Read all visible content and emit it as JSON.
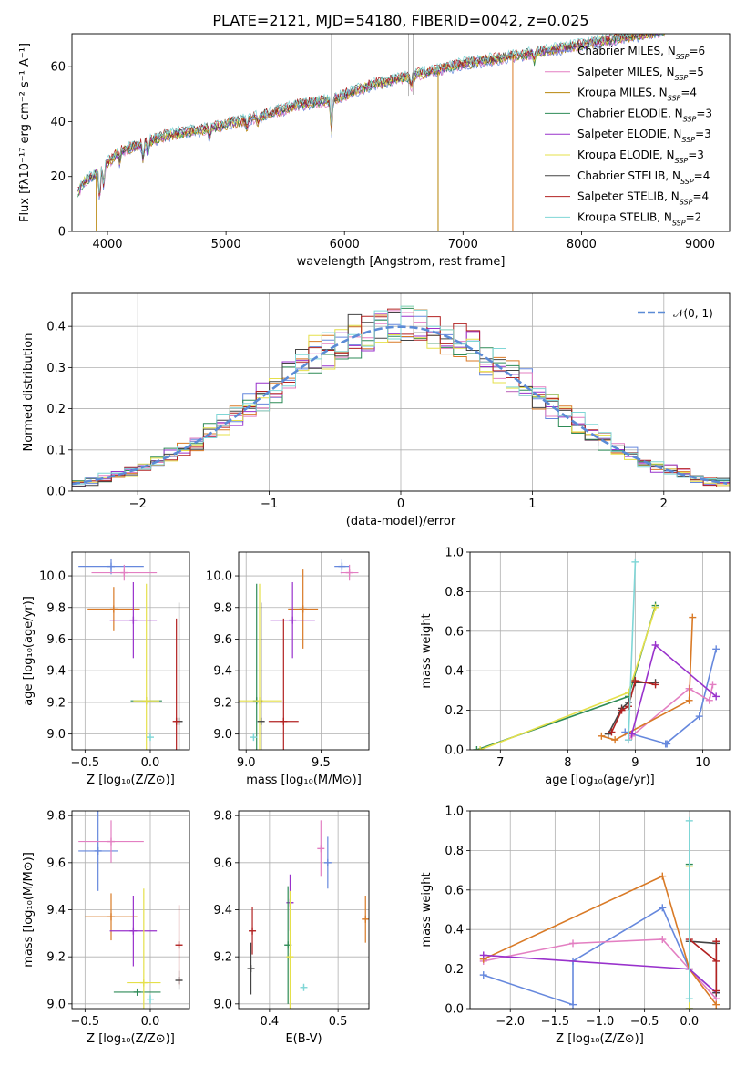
{
  "figure": {
    "title": "PLATE=2121, MJD=54180, FIBERID=0042, z=0.025"
  },
  "chart_data": [
    {
      "id": "spectrum",
      "type": "line",
      "title": "PLATE=2121, MJD=54180, FIBERID=0042, z=0.025",
      "xlabel": "wavelength [Angstrom, rest frame]",
      "ylabel": "Flux [fλ10⁻¹⁷ erg cm⁻² s⁻¹ A⁻¹]",
      "xlim": [
        3700,
        9250
      ],
      "ylim": [
        0,
        72
      ],
      "xticks": [
        4000,
        5000,
        6000,
        7000,
        8000,
        9000
      ],
      "yticks": [
        0,
        20,
        40,
        60
      ],
      "grid": false,
      "legend_position": "top-right",
      "series": [
        {
          "name": "Chabrier MILES, N_SSP=6",
          "color": "#6688dd"
        },
        {
          "name": "Salpeter MILES, N_SSP=5",
          "color": "#e37fc2"
        },
        {
          "name": "Kroupa MILES, N_SSP=4",
          "color": "#b8860b"
        },
        {
          "name": "Chabrier ELODIE, N_SSP=3",
          "color": "#2e8b57"
        },
        {
          "name": "Salpeter ELODIE, N_SSP=3",
          "color": "#9932cc"
        },
        {
          "name": "Kroupa ELODIE, N_SSP=3",
          "color": "#e5e04a"
        },
        {
          "name": "Chabrier STELIB, N_SSP=4",
          "color": "#444444"
        },
        {
          "name": "Salpeter STELIB, N_SSP=4",
          "color": "#b22222"
        },
        {
          "name": "Kroupa STELIB, N_SSP=2",
          "color": "#7fd6d6"
        }
      ],
      "continuum": {
        "x": [
          3750,
          3800,
          3900,
          4000,
          4100,
          4300,
          4500,
          4800,
          5000,
          5300,
          5600,
          5900,
          6200,
          6500,
          6800,
          7000,
          7300,
          7600,
          8000,
          8400,
          8700
        ],
        "y": [
          13,
          17,
          20,
          24,
          28,
          31,
          34,
          36,
          38,
          41,
          45,
          47,
          52,
          55,
          58,
          60,
          62,
          64,
          67,
          70,
          72
        ]
      }
    },
    {
      "id": "residuals",
      "type": "line",
      "xlabel": "(data-model)/error",
      "ylabel": "Normed distribution",
      "xlim": [
        -2.5,
        2.5
      ],
      "ylim": [
        0,
        0.48
      ],
      "xticks": [
        -2,
        -1,
        0,
        1,
        2
      ],
      "yticks": [
        0.0,
        0.1,
        0.2,
        0.3,
        0.4
      ],
      "grid": true,
      "legend_position": "top-right",
      "legend": "𝒩(0, 1)",
      "reference_curve": {
        "type": "gaussian",
        "mean": 0,
        "sigma": 1,
        "color": "#5b8bd6",
        "dashed": true
      },
      "histogram_colors": [
        "#6688dd",
        "#e37fc2",
        "#d97a26",
        "#2e8b57",
        "#9932cc",
        "#e5e04a",
        "#444444",
        "#b22222",
        "#7fd6d6"
      ]
    },
    {
      "id": "age-vs-Z",
      "type": "scatter",
      "xlabel": "Z [log₁₀(Z/Z⊙)]",
      "ylabel": "age  [log₁₀(age/yr)]",
      "xlim": [
        -0.6,
        0.3
      ],
      "ylim": [
        8.9,
        10.15
      ],
      "xticks": [
        -0.5,
        0.0
      ],
      "yticks": [
        9.0,
        9.2,
        9.4,
        9.6,
        9.8,
        10.0
      ],
      "grid": true,
      "points": [
        {
          "x": -0.3,
          "y": 10.06,
          "xerr": 0.25,
          "yerr": 0.05,
          "color": "#6688dd"
        },
        {
          "x": -0.2,
          "y": 10.02,
          "xerr": 0.25,
          "yerr": 0.05,
          "color": "#e37fc2"
        },
        {
          "x": -0.28,
          "y": 9.79,
          "xerr": 0.2,
          "yerr": 0.14,
          "color": "#d97a26"
        },
        {
          "x": -0.13,
          "y": 9.72,
          "xerr": 0.18,
          "yerr": 0.24,
          "color": "#9932cc"
        },
        {
          "x": -0.03,
          "y": 9.21,
          "xerr": 0.12,
          "yerr": 0.0,
          "color": "#2e8b57"
        },
        {
          "x": -0.03,
          "y": 9.21,
          "xerr": 0.1,
          "yerr": 0.74,
          "color": "#e5e04a"
        },
        {
          "x": 0.22,
          "y": 9.08,
          "xerr": 0.0,
          "yerr": 0.75,
          "color": "#444444"
        },
        {
          "x": 0.2,
          "y": 9.08,
          "xerr": 0.0,
          "yerr": 0.65,
          "color": "#b22222"
        },
        {
          "x": 0.0,
          "y": 8.98,
          "xerr": 0.0,
          "yerr": 0.02,
          "color": "#7fd6d6"
        }
      ]
    },
    {
      "id": "age-vs-mass",
      "type": "scatter",
      "xlabel": "mass [log₁₀(M/M⊙)]",
      "xlim": [
        8.95,
        9.82
      ],
      "ylim": [
        8.9,
        10.15
      ],
      "xticks": [
        9.0,
        9.5
      ],
      "yticks": [
        9.0,
        9.2,
        9.4,
        9.6,
        9.8,
        10.0
      ],
      "grid": true,
      "points": [
        {
          "x": 9.64,
          "y": 10.06,
          "xerr": 0.05,
          "yerr": 0.05,
          "color": "#6688dd"
        },
        {
          "x": 9.69,
          "y": 10.02,
          "xerr": 0.06,
          "yerr": 0.05,
          "color": "#e37fc2"
        },
        {
          "x": 9.38,
          "y": 9.79,
          "xerr": 0.1,
          "yerr": 0.25,
          "color": "#d97a26"
        },
        {
          "x": 9.31,
          "y": 9.72,
          "xerr": 0.15,
          "yerr": 0.24,
          "color": "#9932cc"
        },
        {
          "x": 9.07,
          "y": 9.21,
          "xerr": 0.02,
          "yerr": 0.74,
          "color": "#2e8b57"
        },
        {
          "x": 9.09,
          "y": 9.21,
          "xerr": 0.15,
          "yerr": 0.74,
          "color": "#e5e04a"
        },
        {
          "x": 9.1,
          "y": 9.08,
          "xerr": 0.0,
          "yerr": 0.75,
          "color": "#444444"
        },
        {
          "x": 9.25,
          "y": 9.08,
          "xerr": 0.1,
          "yerr": 0.65,
          "color": "#b22222"
        },
        {
          "x": 9.05,
          "y": 8.98,
          "xerr": 0.0,
          "yerr": 0.02,
          "color": "#7fd6d6"
        }
      ]
    },
    {
      "id": "weight-vs-age",
      "type": "line",
      "xlabel": "age  [log₁₀(age/yr)]",
      "ylabel": "mass weight",
      "xlim": [
        6.55,
        10.4
      ],
      "ylim": [
        0,
        1.0
      ],
      "xticks": [
        7,
        8,
        9,
        10
      ],
      "yticks": [
        0.0,
        0.2,
        0.4,
        0.6,
        0.8,
        1.0
      ],
      "grid": true,
      "series": [
        {
          "color": "#6688dd",
          "x": [
            8.85,
            9.47,
            9.45,
            9.95,
            10.2
          ],
          "y": [
            0.09,
            0.03,
            0.03,
            0.17,
            0.51
          ]
        },
        {
          "color": "#e37fc2",
          "x": [
            8.9,
            8.95,
            9.8,
            10.1,
            10.15
          ],
          "y": [
            0.05,
            0.07,
            0.31,
            0.25,
            0.33
          ]
        },
        {
          "color": "#d97a26",
          "x": [
            8.5,
            8.7,
            9.8,
            9.85
          ],
          "y": [
            0.07,
            0.05,
            0.25,
            0.67
          ]
        },
        {
          "color": "#2e8b57",
          "x": [
            6.65,
            8.9,
            9.3
          ],
          "y": [
            0.0,
            0.27,
            0.73
          ]
        },
        {
          "color": "#9932cc",
          "x": [
            8.95,
            9.3,
            10.2
          ],
          "y": [
            0.08,
            0.53,
            0.27
          ]
        },
        {
          "color": "#e5e04a",
          "x": [
            6.7,
            8.9,
            9.3
          ],
          "y": [
            0.0,
            0.29,
            0.72
          ]
        },
        {
          "color": "#444444",
          "x": [
            8.6,
            8.8,
            8.9,
            9.0,
            9.3
          ],
          "y": [
            0.08,
            0.21,
            0.24,
            0.34,
            0.34
          ]
        },
        {
          "color": "#b22222",
          "x": [
            8.65,
            8.8,
            8.9,
            9.0,
            9.3
          ],
          "y": [
            0.09,
            0.2,
            0.22,
            0.35,
            0.33
          ]
        },
        {
          "color": "#7fd6d6",
          "x": [
            8.9,
            9.0
          ],
          "y": [
            0.05,
            0.95
          ]
        }
      ]
    },
    {
      "id": "mass-vs-Z",
      "type": "scatter",
      "xlabel": "Z [log₁₀(Z/Z⊙)]",
      "ylabel": "mass [log₁₀(M/M⊙)]",
      "xlim": [
        -0.6,
        0.3
      ],
      "ylim": [
        8.98,
        9.82
      ],
      "xticks": [
        -0.5,
        0.0
      ],
      "yticks": [
        9.0,
        9.2,
        9.4,
        9.6,
        9.8
      ],
      "grid": true,
      "points": [
        {
          "x": -0.4,
          "y": 9.65,
          "xerr": 0.15,
          "yerr": 0.17,
          "color": "#6688dd"
        },
        {
          "x": -0.3,
          "y": 9.69,
          "xerr": 0.25,
          "yerr": 0.09,
          "color": "#e37fc2"
        },
        {
          "x": -0.3,
          "y": 9.37,
          "xerr": 0.2,
          "yerr": 0.1,
          "color": "#d97a26"
        },
        {
          "x": -0.13,
          "y": 9.31,
          "xerr": 0.18,
          "yerr": 0.15,
          "color": "#9932cc"
        },
        {
          "x": -0.1,
          "y": 9.05,
          "xerr": 0.18,
          "yerr": 0.0,
          "color": "#2e8b57"
        },
        {
          "x": -0.05,
          "y": 9.09,
          "xerr": 0.13,
          "yerr": 0.4,
          "color": "#e5e04a"
        },
        {
          "x": 0.22,
          "y": 9.1,
          "xerr": 0.0,
          "yerr": 0.04,
          "color": "#444444"
        },
        {
          "x": 0.22,
          "y": 9.25,
          "xerr": 0.0,
          "yerr": 0.17,
          "color": "#b22222"
        },
        {
          "x": 0.0,
          "y": 9.02,
          "xerr": 0.0,
          "yerr": 0.02,
          "color": "#7fd6d6"
        }
      ]
    },
    {
      "id": "mass-vs-EBV",
      "type": "scatter",
      "xlabel": "E(B-V)",
      "xlim": [
        0.355,
        0.545
      ],
      "ylim": [
        8.98,
        9.82
      ],
      "xticks": [
        0.4,
        0.5
      ],
      "yticks": [
        9.0,
        9.2,
        9.4,
        9.6,
        9.8
      ],
      "grid": true,
      "points": [
        {
          "x": 0.485,
          "y": 9.6,
          "yerr": 0.11,
          "color": "#6688dd"
        },
        {
          "x": 0.475,
          "y": 9.66,
          "yerr": 0.12,
          "color": "#e37fc2"
        },
        {
          "x": 0.54,
          "y": 9.36,
          "yerr": 0.1,
          "color": "#d97a26"
        },
        {
          "x": 0.43,
          "y": 9.43,
          "yerr": 0.12,
          "color": "#9932cc"
        },
        {
          "x": 0.427,
          "y": 9.25,
          "yerr": 0.25,
          "color": "#2e8b57"
        },
        {
          "x": 0.43,
          "y": 9.2,
          "yerr": 0.28,
          "color": "#e5e04a"
        },
        {
          "x": 0.373,
          "y": 9.15,
          "yerr": 0.11,
          "color": "#444444"
        },
        {
          "x": 0.375,
          "y": 9.31,
          "yerr": 0.1,
          "color": "#b22222"
        },
        {
          "x": 0.45,
          "y": 9.07,
          "yerr": 0.01,
          "color": "#7fd6d6"
        }
      ]
    },
    {
      "id": "weight-vs-Z",
      "type": "line",
      "xlabel": "Z [log₁₀(Z/Z⊙)]",
      "ylabel": "mass weight",
      "xlim": [
        -2.45,
        0.45
      ],
      "ylim": [
        0,
        1.0
      ],
      "xticks": [
        -2.0,
        -1.5,
        -1.0,
        -0.5,
        0.0
      ],
      "yticks": [
        0.0,
        0.2,
        0.4,
        0.6,
        0.8,
        1.0
      ],
      "grid": true,
      "series": [
        {
          "color": "#6688dd",
          "x": [
            -2.3,
            -1.3,
            -1.3,
            -0.3,
            0.0,
            0.3
          ],
          "y": [
            0.17,
            0.02,
            0.24,
            0.51,
            0.2,
            0.08
          ]
        },
        {
          "color": "#e37fc2",
          "x": [
            -2.3,
            -1.3,
            -0.3,
            0.0,
            0.3
          ],
          "y": [
            0.24,
            0.33,
            0.35,
            0.2,
            0.05
          ]
        },
        {
          "color": "#d97a26",
          "x": [
            -2.3,
            -0.3,
            0.0,
            0.3
          ],
          "y": [
            0.25,
            0.67,
            0.2,
            0.02
          ]
        },
        {
          "color": "#9932cc",
          "x": [
            -2.3,
            0.0,
            0.3
          ],
          "y": [
            0.27,
            0.2,
            0.08
          ]
        },
        {
          "color": "#2e8b57",
          "x": [
            0.0,
            0.0
          ],
          "y": [
            0.0,
            0.73
          ]
        },
        {
          "color": "#e5e04a",
          "x": [
            0.0,
            0.0
          ],
          "y": [
            0.0,
            0.72
          ]
        },
        {
          "color": "#444444",
          "x": [
            0.0,
            0.3,
            0.3
          ],
          "y": [
            0.34,
            0.33,
            0.08
          ]
        },
        {
          "color": "#b22222",
          "x": [
            0.0,
            0.3,
            0.3,
            0.3
          ],
          "y": [
            0.35,
            0.24,
            0.34,
            0.09
          ]
        },
        {
          "color": "#7fd6d6",
          "x": [
            0.0,
            0.0
          ],
          "y": [
            0.05,
            0.95
          ]
        }
      ]
    }
  ]
}
